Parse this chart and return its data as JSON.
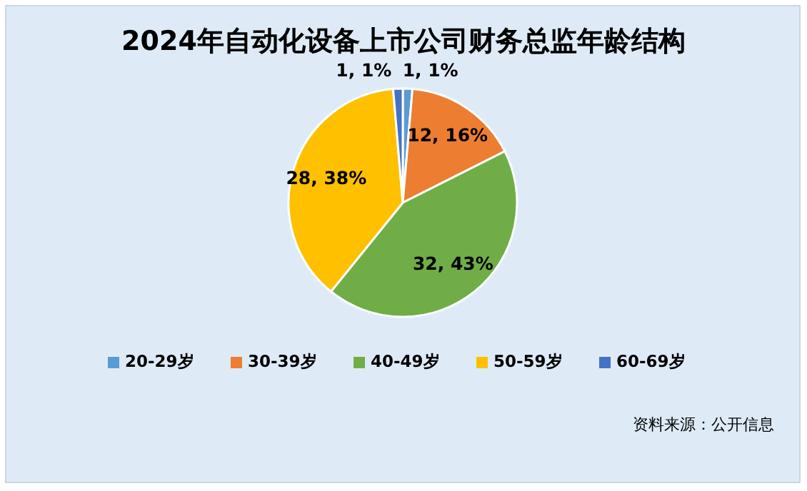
{
  "chart_data": {
    "type": "pie",
    "title": "2024年自动化设备上市公司财务总监年龄结构",
    "categories": [
      "20-29岁",
      "30-39岁",
      "40-49岁",
      "50-59岁",
      "60-69岁"
    ],
    "values": [
      1,
      12,
      32,
      28,
      1
    ],
    "value_labels": [
      "1, 1%",
      "12, 16%",
      "32, 43%",
      "28, 38%",
      "1, 1%"
    ],
    "colors": [
      "#5b9bd5",
      "#ed7d31",
      "#70ad47",
      "#ffc000",
      "#4472c4"
    ],
    "legend": "bottom",
    "annotations": [
      "资料来源：公开信息"
    ]
  }
}
